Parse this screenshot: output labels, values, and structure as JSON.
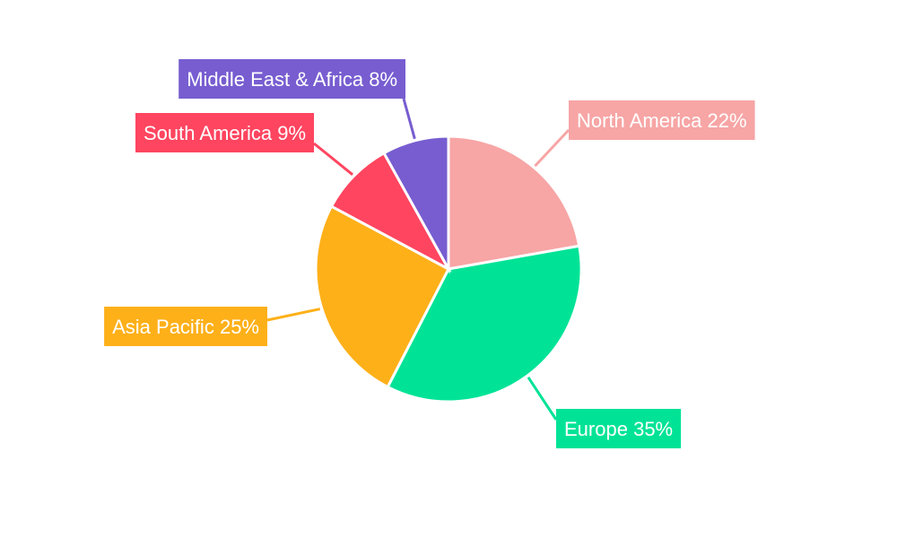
{
  "chart_data": {
    "type": "pie",
    "categories": [
      "North America",
      "Europe",
      "Asia Pacific",
      "South America",
      "Middle East & Africa"
    ],
    "values": [
      22,
      35,
      25,
      9,
      8
    ],
    "value_labels": [
      "22%",
      "35%",
      "25%",
      "9%",
      "8%"
    ],
    "colors": [
      "#f7a5a5",
      "#00e396",
      "#feb019",
      "#ff4560",
      "#775dd0"
    ]
  }
}
